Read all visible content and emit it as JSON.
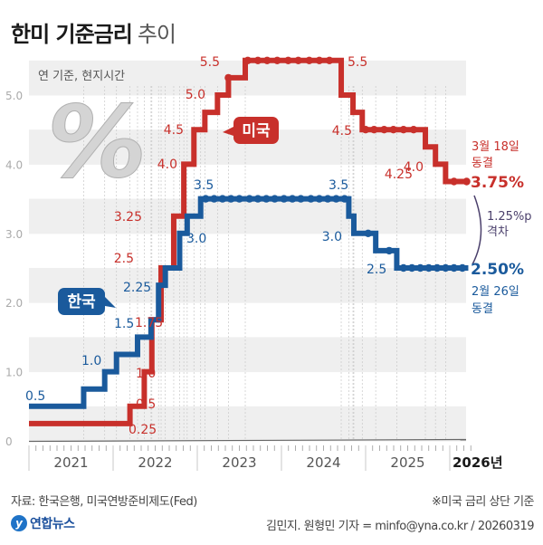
{
  "title": {
    "bold": "한미 기준금리",
    "light": "추이"
  },
  "chart_data": {
    "type": "line",
    "title": "한미 기준금리 추이",
    "subtitle": "연 기준, 현지시간",
    "ylim": [
      0,
      5.7
    ],
    "yticks": [
      0,
      1.0,
      2.0,
      3.0,
      4.0,
      5.0
    ],
    "ytick_labels": [
      "0",
      "1.0",
      "2.0",
      "3.0",
      "4.0",
      "5.0"
    ],
    "xlim": [
      2021,
      2026.2
    ],
    "xtick_labels": [
      "2021",
      "2022",
      "2023",
      "2024",
      "2025",
      "2026년"
    ],
    "grid": true,
    "series": [
      {
        "name": "미국",
        "color": "#c8302b",
        "steps": [
          [
            2021.0,
            0.25
          ],
          [
            2022.2,
            0.5
          ],
          [
            2022.37,
            1.0
          ],
          [
            2022.46,
            1.75
          ],
          [
            2022.57,
            2.5
          ],
          [
            2022.72,
            3.25
          ],
          [
            2022.84,
            4.0
          ],
          [
            2022.96,
            4.5
          ],
          [
            2023.09,
            4.75
          ],
          [
            2023.24,
            5.0
          ],
          [
            2023.37,
            5.25
          ],
          [
            2023.57,
            5.5
          ],
          [
            2024.71,
            5.0
          ],
          [
            2024.85,
            4.75
          ],
          [
            2024.96,
            4.5
          ],
          [
            2025.71,
            4.25
          ],
          [
            2025.83,
            4.0
          ],
          [
            2025.95,
            3.75
          ],
          [
            2026.22,
            3.75
          ]
        ],
        "dots": [
          2023.37,
          2023.6,
          2023.72,
          2023.83,
          2023.95,
          2024.08,
          2024.2,
          2024.33,
          2024.45,
          2024.57,
          2025.0,
          2025.1,
          2025.22,
          2025.33,
          2025.45,
          2025.57,
          2026.05,
          2026.2
        ]
      },
      {
        "name": "한국",
        "color": "#1a5a9c",
        "steps": [
          [
            2021.0,
            0.5
          ],
          [
            2021.65,
            0.75
          ],
          [
            2021.9,
            1.0
          ],
          [
            2022.04,
            1.25
          ],
          [
            2022.29,
            1.5
          ],
          [
            2022.45,
            1.75
          ],
          [
            2022.54,
            2.25
          ],
          [
            2022.62,
            2.5
          ],
          [
            2022.79,
            3.0
          ],
          [
            2022.88,
            3.25
          ],
          [
            2023.04,
            3.5
          ],
          [
            2024.8,
            3.25
          ],
          [
            2024.86,
            3.0
          ],
          [
            2025.12,
            2.75
          ],
          [
            2025.37,
            2.5
          ],
          [
            2026.22,
            2.5
          ]
        ],
        "dots": [
          2023.1,
          2023.2,
          2023.3,
          2023.4,
          2023.5,
          2023.62,
          2023.72,
          2023.82,
          2023.92,
          2024.03,
          2024.13,
          2024.23,
          2024.35,
          2024.45,
          2024.55,
          2024.65,
          2024.75,
          2025.03,
          2025.28,
          2025.45,
          2025.55,
          2025.65,
          2025.75,
          2025.85,
          2025.95,
          2026.05,
          2026.15
        ]
      }
    ],
    "annotations": {
      "us": [
        "0.25",
        "0.5",
        "1.0",
        "1.75",
        "2.5",
        "3.25",
        "4.0",
        "4.5",
        "5.0",
        "5.5",
        "5.5",
        "4.5",
        "4.25",
        "4.0"
      ],
      "kr": [
        "0.5",
        "1.0",
        "1.5",
        "2.25",
        "3.0",
        "3.5",
        "3.5",
        "3.0",
        "2.5"
      ],
      "us_bubble": "미국",
      "kr_bubble": "한국",
      "us_final": "3.75%",
      "us_final_note_1": "3월 18일",
      "us_final_note_2": "동결",
      "kr_final": "2.50%",
      "kr_final_note_1": "2월 26일",
      "kr_final_note_2": "동결",
      "gap_1": "1.25%p",
      "gap_2": "격차",
      "percent_art": "%"
    }
  },
  "footer": {
    "source": "자료: 한국은행, 미국연방준비제도(Fed)",
    "note": "※미국 금리 상단 기준",
    "logo": "연합뉴스",
    "logo_mark": "y",
    "credit": "김민지. 원형민 기자 = minfo@yna.co.kr / 20260319"
  }
}
